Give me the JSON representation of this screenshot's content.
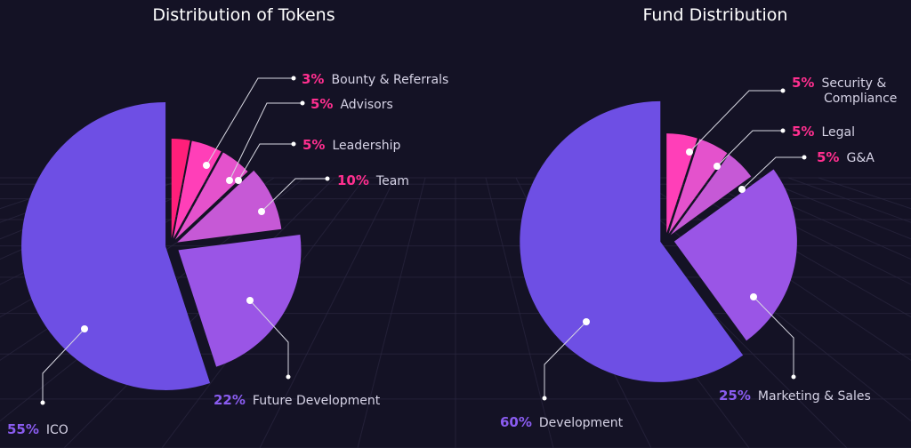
{
  "chart_data": [
    {
      "type": "pie",
      "title": "Distribution of Tokens",
      "slices": [
        {
          "label": "Bounty & Referrals",
          "value": 3,
          "value_label": "3%",
          "color": "#ff1f7a"
        },
        {
          "label": "Advisors",
          "value": 5,
          "value_label": "5%",
          "color": "#ff3fb8"
        },
        {
          "label": "Leadership",
          "value": 5,
          "value_label": "5%",
          "color": "#e452cc"
        },
        {
          "label": "Team",
          "value": 10,
          "value_label": "10%",
          "color": "#c659d6"
        },
        {
          "label": "Future Development",
          "value": 22,
          "value_label": "22%",
          "color": "#9a55e6"
        },
        {
          "label": "ICO",
          "value": 55,
          "value_label": "55%",
          "color": "#6e4fe4"
        }
      ]
    },
    {
      "type": "pie",
      "title": "Fund Distribution",
      "slices": [
        {
          "label": "Security & Compliance",
          "value": 5,
          "value_label": "5%",
          "color": "#ff3fb8"
        },
        {
          "label": "Legal",
          "value": 5,
          "value_label": "5%",
          "color": "#e452cc"
        },
        {
          "label": "G&A",
          "value": 5,
          "value_label": "5%",
          "color": "#c659d6"
        },
        {
          "label": "Marketing & Sales",
          "value": 25,
          "value_label": "25%",
          "color": "#9a55e6"
        },
        {
          "label": "Development",
          "value": 60,
          "value_label": "60%",
          "color": "#6e4fe4"
        }
      ]
    }
  ],
  "colors": {
    "background": "#141225",
    "grid": "#2a2740",
    "accent_pink": "#ff2f8f",
    "accent_purple": "#8a5cf0"
  }
}
